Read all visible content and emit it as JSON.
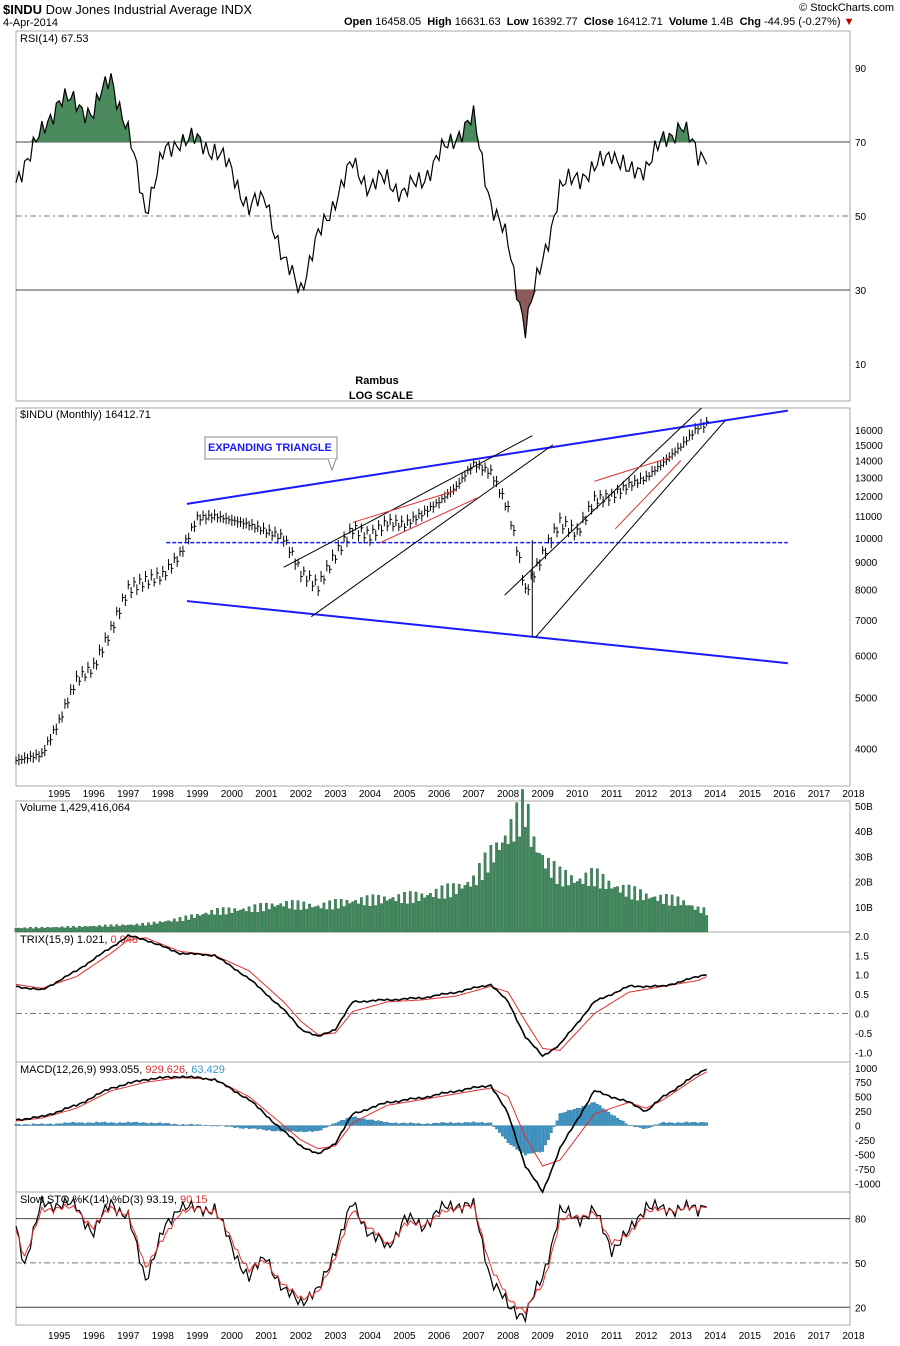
{
  "header": {
    "symbol": "$INDU",
    "name": "Dow Jones Industrial Average",
    "exchange": "INDX",
    "date": "4-Apr-2014",
    "copyright": "© StockCharts.com",
    "open_label": "Open",
    "open": "16458.05",
    "high_label": "High",
    "high": "16631.63",
    "low_label": "Low",
    "low": "16392.77",
    "close_label": "Close",
    "close": "16412.71",
    "volume_label": "Volume",
    "volume": "1.4B",
    "chg_label": "Chg",
    "chg": "-44.95 (-0.27%)"
  },
  "x_axis_years": [
    "1995",
    "1996",
    "1997",
    "1998",
    "1999",
    "2000",
    "2001",
    "2002",
    "2003",
    "2004",
    "2005",
    "2006",
    "2007",
    "2008",
    "2009",
    "2010",
    "2011",
    "2012",
    "2013",
    "2014",
    "2015",
    "2016",
    "2017",
    "2018"
  ],
  "annotations": {
    "author": "Rambus",
    "scale_note": "LOG SCALE",
    "pattern_label": "EXPANDING TRIANGLE"
  },
  "colors": {
    "up_fill": "#4a8a5c",
    "down_fill": "#8b5a5a",
    "trendline_blue": "#1a1aff",
    "trendline_red": "#e03030",
    "signal_red": "#e03030",
    "histogram": "#3a96c8",
    "volume_bar": "#3d8a5a"
  },
  "chart_data": [
    {
      "type": "line",
      "panel": "rsi",
      "legend": "RSI(14) 67.53",
      "y_ticks": [
        10,
        30,
        50,
        70,
        90
      ],
      "ylim": [
        0,
        100
      ],
      "reference_lines": [
        30,
        50,
        70
      ],
      "x": [
        1994.25,
        1994.5,
        1995,
        1995.5,
        1996,
        1996.5,
        1997,
        1997.5,
        1998,
        1998.5,
        1999,
        1999.5,
        2000,
        2000.5,
        2001,
        2001.5,
        2002,
        2002.5,
        2003,
        2003.5,
        2004,
        2004.5,
        2005,
        2005.5,
        2006,
        2006.5,
        2007,
        2007.5,
        2008,
        2008.5,
        2009,
        2009.5,
        2010,
        2010.5,
        2011,
        2011.5,
        2012,
        2012.5,
        2013,
        2013.5,
        2014,
        2014.25
      ],
      "values": [
        59,
        65,
        72,
        82,
        80,
        78,
        88,
        72,
        52,
        66,
        71,
        70,
        68,
        62,
        52,
        55,
        37,
        31,
        44,
        55,
        64,
        58,
        60,
        56,
        60,
        66,
        72,
        76,
        54,
        42,
        20,
        38,
        57,
        61,
        62,
        68,
        61,
        64,
        70,
        75,
        66,
        67.5
      ]
    },
    {
      "type": "bar",
      "panel": "price",
      "legend": "$INDU (Monthly) 16412.71",
      "scale": "log",
      "y_ticks": [
        4000,
        5000,
        6000,
        7000,
        8000,
        9000,
        10000,
        11000,
        12000,
        13000,
        14000,
        15000,
        16000
      ],
      "x": [
        1994.25,
        1995,
        1995.5,
        1996,
        1996.5,
        1997,
        1997.5,
        1998,
        1998.5,
        1999,
        1999.5,
        2000,
        2000.5,
        2001,
        2001.5,
        2002,
        2002.5,
        2003,
        2003.5,
        2004,
        2004.5,
        2005,
        2005.5,
        2006,
        2006.5,
        2007,
        2007.5,
        2008,
        2008.5,
        2009,
        2009.5,
        2010,
        2010.5,
        2011,
        2011.5,
        2012,
        2012.5,
        2013,
        2013.5,
        2014,
        2014.25
      ],
      "close": [
        3800,
        3900,
        4500,
        5400,
        5700,
        6700,
        8000,
        8300,
        8500,
        9300,
        10900,
        11000,
        10800,
        10600,
        10300,
        10000,
        8600,
        8100,
        9300,
        10400,
        10100,
        10700,
        10600,
        11100,
        11700,
        12500,
        13800,
        13300,
        11300,
        7900,
        9300,
        10700,
        10200,
        11800,
        12000,
        12600,
        13000,
        13900,
        14900,
        16200,
        16412.71
      ]
    },
    {
      "type": "bar",
      "panel": "volume",
      "legend": "Volume 1,429,416,064",
      "y_tick_labels": [
        "10B",
        "20B",
        "30B",
        "40B",
        "50B"
      ],
      "y_ticks": [
        10,
        20,
        30,
        40,
        50
      ],
      "unit": "billion shares",
      "x": [
        1994.25,
        1996,
        1998,
        1999,
        2000,
        2001,
        2002,
        2003,
        2004,
        2005,
        2006,
        2007,
        2007.5,
        2008,
        2008.5,
        2009,
        2009.2,
        2009.6,
        2010,
        2010.5,
        2011,
        2011.5,
        2012,
        2012.5,
        2013,
        2013.5,
        2014,
        2014.25
      ],
      "values": [
        1.5,
        2,
        3,
        5,
        8,
        9,
        11,
        10,
        12,
        13,
        14,
        17,
        20,
        30,
        38,
        50,
        36,
        27,
        22,
        20,
        22,
        18,
        16,
        14,
        13,
        12,
        9,
        8
      ]
    },
    {
      "type": "line",
      "panel": "trix",
      "legend": "TRIX(15,9) 1.021, 0.948",
      "y_ticks": [
        -1.0,
        -0.5,
        0.0,
        0.5,
        1.0,
        1.5,
        2.0
      ],
      "ylim": [
        -1.25,
        2.1
      ],
      "reference_lines": [
        0
      ],
      "x": [
        1994.25,
        1995,
        1996,
        1997,
        1997.5,
        1998,
        1999,
        2000,
        2001,
        2002,
        2002.5,
        2003,
        2003.5,
        2004,
        2005,
        2006,
        2007,
        2008,
        2008.5,
        2009,
        2009.5,
        2010,
        2011,
        2012,
        2013,
        2014,
        2014.25
      ],
      "series": [
        {
          "name": "TRIX",
          "values": [
            0.7,
            0.6,
            1.1,
            1.7,
            2.0,
            1.9,
            1.55,
            1.5,
            0.9,
            0.1,
            -0.4,
            -0.6,
            -0.4,
            0.3,
            0.35,
            0.4,
            0.55,
            0.75,
            0.3,
            -0.6,
            -1.1,
            -0.8,
            0.3,
            0.7,
            0.7,
            0.95,
            1.02
          ]
        },
        {
          "name": "Signal",
          "values": [
            0.75,
            0.65,
            0.95,
            1.55,
            1.9,
            1.95,
            1.6,
            1.5,
            1.1,
            0.3,
            -0.2,
            -0.55,
            -0.5,
            0.05,
            0.3,
            0.35,
            0.45,
            0.7,
            0.55,
            -0.2,
            -0.9,
            -0.95,
            0.0,
            0.55,
            0.7,
            0.85,
            0.95
          ]
        }
      ]
    },
    {
      "type": "line",
      "panel": "macd",
      "legend": "MACD(12,26,9) 993.055, 929.626, 63.429",
      "y_ticks": [
        -1000,
        -750,
        -500,
        -250,
        0,
        250,
        500,
        750,
        1000
      ],
      "ylim": [
        -1150,
        1100
      ],
      "x": [
        1994.25,
        1995,
        1996,
        1997,
        1998,
        1999,
        2000,
        2001,
        2002,
        2002.5,
        2003,
        2003.5,
        2004,
        2005,
        2006,
        2007,
        2008,
        2008.5,
        2009,
        2009.5,
        2010,
        2011,
        2012,
        2012.5,
        2013,
        2014,
        2014.25
      ],
      "series": [
        {
          "name": "MACD",
          "values": [
            100,
            150,
            350,
            650,
            800,
            850,
            800,
            450,
            -100,
            -350,
            -500,
            -300,
            200,
            400,
            480,
            600,
            700,
            200,
            -700,
            -1150,
            -400,
            600,
            400,
            250,
            500,
            900,
            993
          ]
        },
        {
          "name": "Signal",
          "values": [
            80,
            130,
            300,
            600,
            750,
            830,
            800,
            500,
            0,
            -250,
            -400,
            -350,
            50,
            350,
            450,
            550,
            650,
            500,
            -200,
            -700,
            -600,
            200,
            400,
            300,
            450,
            850,
            930
          ]
        },
        {
          "name": "Histogram",
          "values": [
            20,
            20,
            50,
            50,
            50,
            20,
            0,
            -50,
            -100,
            -100,
            -100,
            50,
            150,
            50,
            30,
            50,
            50,
            -300,
            -500,
            -450,
            200,
            400,
            0,
            -50,
            50,
            50,
            63
          ]
        }
      ]
    },
    {
      "type": "line",
      "panel": "stochastic",
      "legend": "Slow STO %K(14) %D(3) 93.19, 90.15",
      "y_ticks": [
        20,
        50,
        80
      ],
      "ylim": [
        8,
        98
      ],
      "reference_lines": [
        20,
        50,
        80
      ],
      "x": [
        1994.25,
        1994.5,
        1995,
        1995.5,
        1996,
        1996.5,
        1997,
        1997.5,
        1998,
        1998.5,
        1999,
        1999.5,
        2000,
        2000.5,
        2001,
        2001.5,
        2002,
        2002.5,
        2003,
        2003.5,
        2004,
        2004.5,
        2005,
        2005.5,
        2006,
        2006.5,
        2007,
        2007.5,
        2008,
        2008.5,
        2009,
        2009.5,
        2010,
        2010.5,
        2011,
        2011.5,
        2012,
        2012.5,
        2013,
        2013.5,
        2014,
        2014.25
      ],
      "series": [
        {
          "name": "%K",
          "values": [
            75,
            50,
            90,
            90,
            88,
            70,
            92,
            80,
            40,
            70,
            90,
            85,
            88,
            60,
            40,
            55,
            30,
            25,
            30,
            60,
            90,
            70,
            60,
            80,
            75,
            85,
            90,
            88,
            40,
            20,
            15,
            40,
            85,
            80,
            85,
            60,
            70,
            90,
            85,
            88,
            85,
            93
          ]
        },
        {
          "name": "%D",
          "values": [
            72,
            55,
            85,
            88,
            86,
            74,
            88,
            82,
            48,
            65,
            85,
            86,
            86,
            65,
            45,
            52,
            34,
            27,
            29,
            55,
            85,
            74,
            62,
            76,
            76,
            82,
            88,
            88,
            48,
            25,
            18,
            35,
            78,
            82,
            83,
            65,
            68,
            86,
            85,
            87,
            86,
            90
          ]
        }
      ]
    }
  ]
}
